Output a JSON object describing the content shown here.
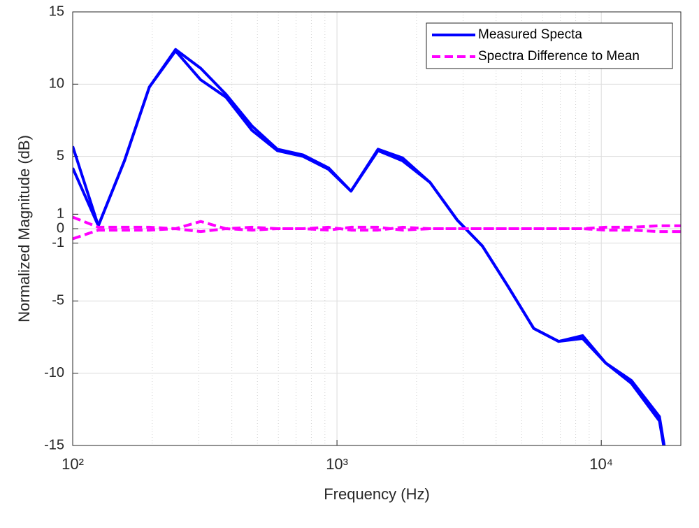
{
  "chart_data": {
    "type": "line",
    "xlabel": "Frequency (Hz)",
    "ylabel": "Normalized Magnitude (dB)",
    "x": [
      100,
      125,
      157,
      195,
      245,
      305,
      380,
      477,
      595,
      745,
      930,
      1130,
      1430,
      1770,
      2250,
      2850,
      3550,
      4440,
      5550,
      6900,
      8500,
      10400,
      13000,
      16600,
      20000
    ],
    "series": [
      {
        "name": "Measured Specta",
        "color": "#0000ff",
        "dash": false,
        "values": [
          [
            5.7,
            0.2,
            4.7,
            9.8,
            12.4,
            11.1,
            9.3,
            7.1,
            5.5,
            5.1,
            4.2,
            2.6,
            5.5,
            4.9,
            3.2,
            0.6,
            -1.2,
            -4.0,
            -6.9,
            -7.8,
            -7.4,
            -9.3,
            -10.5,
            -13.0,
            -22
          ],
          [
            4.2,
            0.2,
            4.7,
            9.8,
            12.3,
            10.3,
            9.1,
            6.8,
            5.4,
            5.0,
            4.1,
            2.6,
            5.4,
            4.7,
            3.2,
            0.6,
            -1.2,
            -4.0,
            -6.9,
            -7.8,
            -7.6,
            -9.3,
            -10.7,
            -13.3,
            -22
          ]
        ]
      },
      {
        "name": "Spectra Difference to Mean",
        "color": "#ff00ff",
        "dash": true,
        "values": [
          [
            0.8,
            0.1,
            0.1,
            0.1,
            0,
            0.5,
            0,
            0.1,
            0,
            0,
            -0.1,
            0.1,
            0.1,
            -0.1,
            0,
            0,
            0,
            0,
            0,
            0,
            0,
            -0.1,
            -0.1,
            -0.2,
            -0.2
          ],
          [
            -0.7,
            -0.1,
            -0.1,
            -0.1,
            0,
            -0.2,
            0,
            -0.1,
            0,
            0,
            0.1,
            -0.1,
            -0.1,
            0.1,
            0,
            0,
            0,
            0,
            0,
            0,
            0,
            0.1,
            0.1,
            0.2,
            0.2
          ]
        ]
      }
    ],
    "xscale": "log",
    "xlim": [
      100,
      20000
    ],
    "ylim": [
      -15,
      15
    ],
    "xticks": [
      {
        "value": 100,
        "label": "10²"
      },
      {
        "value": 1000,
        "label": "10³"
      },
      {
        "value": 10000,
        "label": "10⁴"
      }
    ],
    "xminorticks": [
      200,
      300,
      400,
      500,
      600,
      700,
      800,
      900,
      2000,
      3000,
      4000,
      5000,
      6000,
      7000,
      8000,
      9000
    ],
    "yticks": [
      -15,
      -10,
      -5,
      -1,
      0,
      1,
      5,
      10,
      15
    ],
    "grid": true,
    "legend": "upper right"
  }
}
